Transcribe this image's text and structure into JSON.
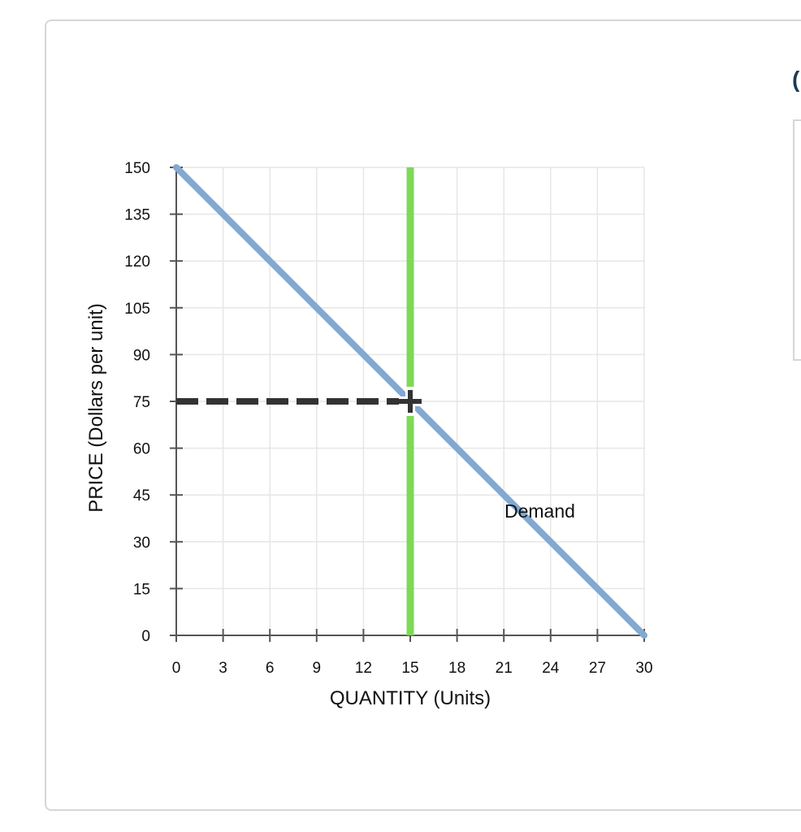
{
  "side_panel": {
    "glyph": "("
  },
  "chart_data": {
    "type": "line",
    "title": "",
    "xlabel": "QUANTITY (Units)",
    "ylabel": "PRICE (Dollars per unit)",
    "xlim": [
      0,
      30
    ],
    "ylim": [
      0,
      150
    ],
    "x_ticks": [
      0,
      3,
      6,
      9,
      12,
      15,
      18,
      21,
      24,
      27,
      30
    ],
    "y_ticks": [
      0,
      15,
      30,
      45,
      60,
      75,
      90,
      105,
      120,
      135,
      150
    ],
    "grid": true,
    "series": [
      {
        "name": "Demand",
        "x": [
          0,
          30
        ],
        "y": [
          150,
          0
        ],
        "color": "#82a9d2"
      }
    ],
    "vertical_lines": [
      {
        "x": 15,
        "y_range": [
          0,
          150
        ],
        "color": "#7ed957"
      }
    ],
    "dashed_guides": [
      {
        "from": [
          0,
          75
        ],
        "to": [
          15,
          75
        ],
        "color": "#333333"
      }
    ],
    "markers": [
      {
        "x": 15,
        "y": 75,
        "shape": "plus",
        "color": "#333333"
      }
    ]
  }
}
